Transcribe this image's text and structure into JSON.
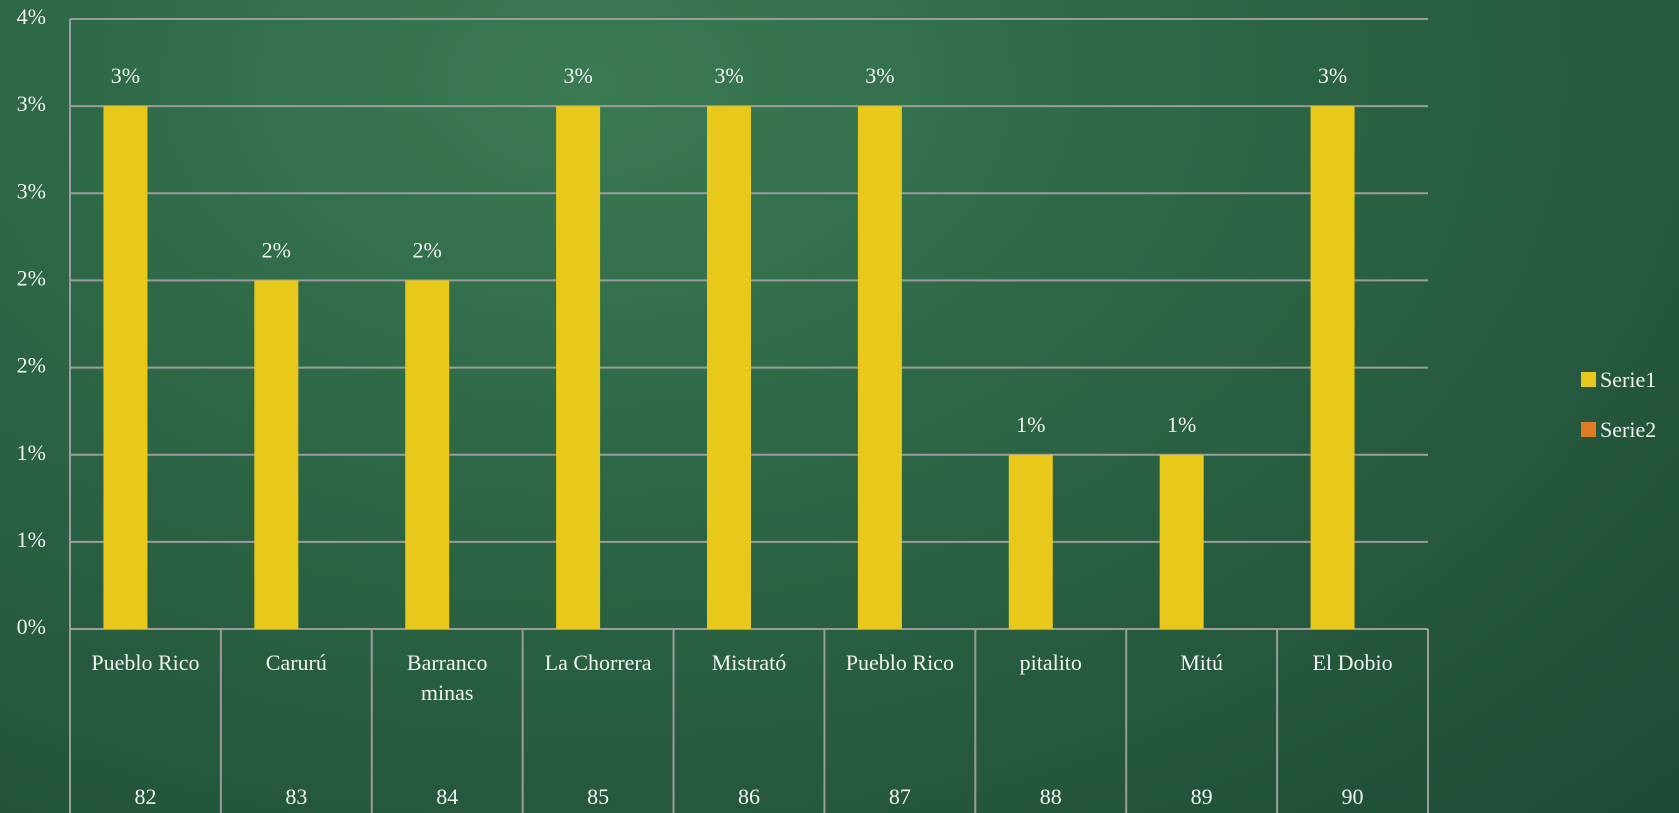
{
  "chart_data": {
    "type": "bar",
    "categories": [
      "Pueblo Rico",
      "Carurú",
      "Barranco\nminas",
      "La Chorrera",
      "Mistrató",
      "Pueblo Rico",
      "pitalito",
      "Mitú",
      "El Dobio"
    ],
    "category_codes": [
      "82",
      "83",
      "84",
      "85",
      "86",
      "87",
      "88",
      "89",
      "90"
    ],
    "series": [
      {
        "name": "Serie1",
        "color": "#e8c81a",
        "values": [
          3,
          2,
          2,
          3,
          3,
          3,
          1,
          1,
          3
        ],
        "value_labels": [
          "3%",
          "2%",
          "2%",
          "3%",
          "3%",
          "3%",
          "1%",
          "1%",
          "3%"
        ]
      },
      {
        "name": "Serie2",
        "color": "#e07b24",
        "values": [
          null,
          null,
          null,
          null,
          null,
          null,
          null,
          null,
          null
        ]
      }
    ],
    "ylim": [
      0,
      3.5
    ],
    "yticks": [
      {
        "value": 0,
        "label": "0%"
      },
      {
        "value": 0.5,
        "label": "1%"
      },
      {
        "value": 1,
        "label": "1%"
      },
      {
        "value": 1.5,
        "label": "2%"
      },
      {
        "value": 2,
        "label": "2%"
      },
      {
        "value": 2.5,
        "label": "3%"
      },
      {
        "value": 3,
        "label": "3%"
      },
      {
        "value": 3.5,
        "label": "4%"
      }
    ],
    "grid": true,
    "legend": "right"
  }
}
